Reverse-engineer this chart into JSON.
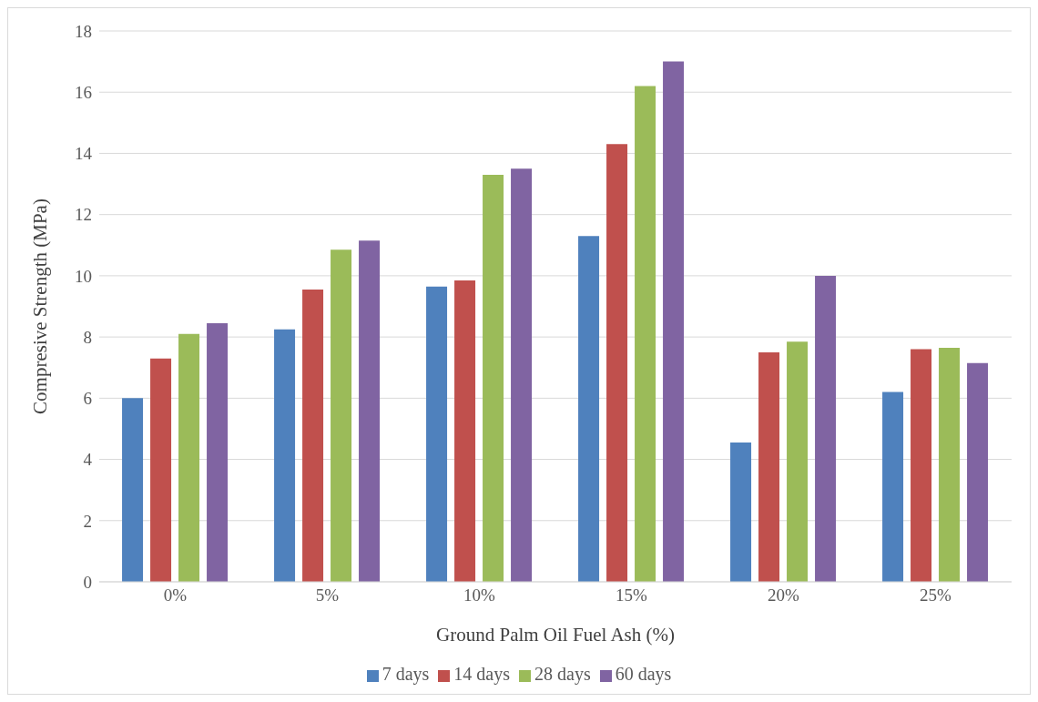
{
  "chart_data": {
    "type": "bar",
    "xlabel": "Ground Palm Oil Fuel Ash (%)",
    "ylabel": "Compresive Strength (MPa)",
    "categories": [
      "0%",
      "5%",
      "10%",
      "15%",
      "20%",
      "25%"
    ],
    "series": [
      {
        "name": "7 days",
        "color": "#4f81bd",
        "values": [
          6.0,
          8.25,
          9.65,
          11.3,
          4.55,
          6.2
        ]
      },
      {
        "name": "14 days",
        "color": "#c0504d",
        "values": [
          7.3,
          9.55,
          9.85,
          14.3,
          7.5,
          7.6
        ]
      },
      {
        "name": "28 days",
        "color": "#9bbb59",
        "values": [
          8.1,
          10.85,
          13.3,
          16.2,
          7.85,
          7.65
        ]
      },
      {
        "name": "60 days",
        "color": "#8064a2",
        "values": [
          8.45,
          11.15,
          13.5,
          17.0,
          10.0,
          7.15
        ]
      }
    ],
    "ylim": [
      0,
      18
    ],
    "yticks": [
      0,
      2,
      4,
      6,
      8,
      10,
      12,
      14,
      16,
      18
    ],
    "grid": "y",
    "legend": "bottom"
  }
}
